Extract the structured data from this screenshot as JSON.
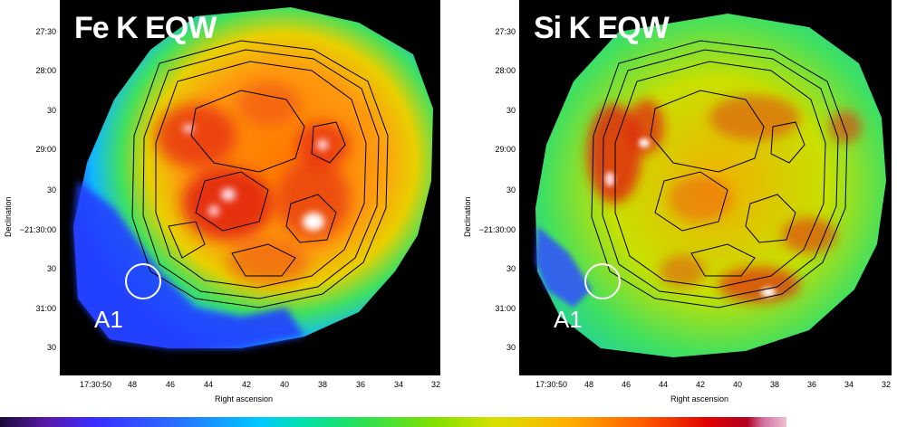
{
  "left_panel": {
    "title": "Fe K EQW",
    "region_label": "A1",
    "y_axis_label": "Declination",
    "x_axis_label": "Right ascension",
    "y_ticks": [
      "27:30",
      "28:00",
      "30",
      "29:00",
      "30",
      "−21:30:00",
      "30",
      "31:00",
      "30"
    ],
    "x_ticks": [
      "17:30:50",
      "48",
      "46",
      "44",
      "42",
      "40",
      "38",
      "36",
      "34",
      "32"
    ]
  },
  "right_panel": {
    "title": "Si K EQW",
    "region_label": "A1",
    "y_axis_label": "Declination",
    "x_axis_label": "Right ascension",
    "y_ticks": [
      "27:30",
      "28:00",
      "30",
      "29:00",
      "30",
      "−21:30:00",
      "30",
      "31:00",
      "30"
    ],
    "x_ticks": [
      "17:30:50",
      "48",
      "46",
      "44",
      "42",
      "40",
      "38",
      "36",
      "34",
      "32"
    ]
  },
  "colorbar": {
    "colors": [
      "#1a0a3a",
      "#3a2cff",
      "#00c8ff",
      "#22e060",
      "#d8e000",
      "#ff5a00",
      "#e00000",
      "#f0c0d0"
    ]
  }
}
